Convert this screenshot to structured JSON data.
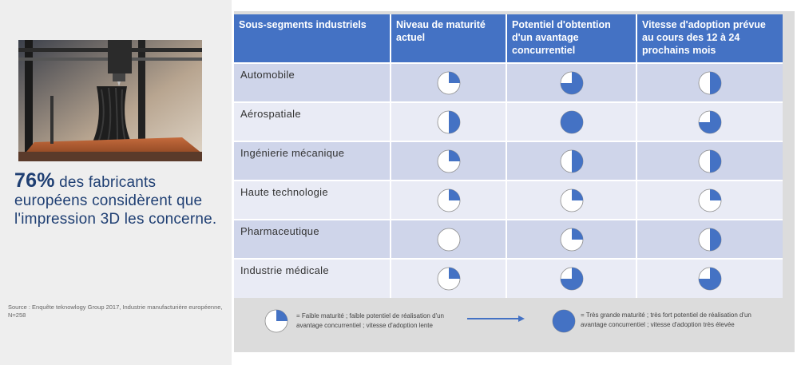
{
  "stat": {
    "percent": "76%",
    "text": " des fabricants européens considèrent que l'impression 3D les concerne."
  },
  "source": "Source : Enquête teknowlogy Group 2017, Industrie manufacturière européenne, N=258",
  "table": {
    "headers": [
      "Sous-segments industriels",
      "Niveau de maturité actuel",
      "Potentiel d'obtention d'un avantage concurrentiel",
      "Vitesse d'adoption prévue au cours des 12 à 24 prochains mois"
    ],
    "rows": [
      {
        "segment": "Automobile",
        "maturity": 0.25,
        "potential": 0.75,
        "speed": 0.5
      },
      {
        "segment": "Aérospatiale",
        "maturity": 0.5,
        "potential": 1.0,
        "speed": 0.75
      },
      {
        "segment": "Ingénierie mécanique",
        "maturity": 0.25,
        "potential": 0.5,
        "speed": 0.5
      },
      {
        "segment": "Haute technologie",
        "maturity": 0.25,
        "potential": 0.25,
        "speed": 0.25
      },
      {
        "segment": "Pharmaceutique",
        "maturity": 0.0,
        "potential": 0.25,
        "speed": 0.5
      },
      {
        "segment": "Industrie médicale",
        "maturity": 0.25,
        "potential": 0.75,
        "speed": 0.75
      }
    ]
  },
  "legend": {
    "low_level": 0.25,
    "low_text": "= Faible maturité ; faible potentiel de réalisation d'un avantage concurrentiel ; vitesse d'adoption lente",
    "high_level": 1.0,
    "high_text": "= Très grande maturité ; très fort potentiel de réalisation d'un avantage concurrentiel ; vitesse d'adoption très élevée"
  },
  "colors": {
    "accent": "#4472c4",
    "stat_text": "#1f3f73"
  }
}
